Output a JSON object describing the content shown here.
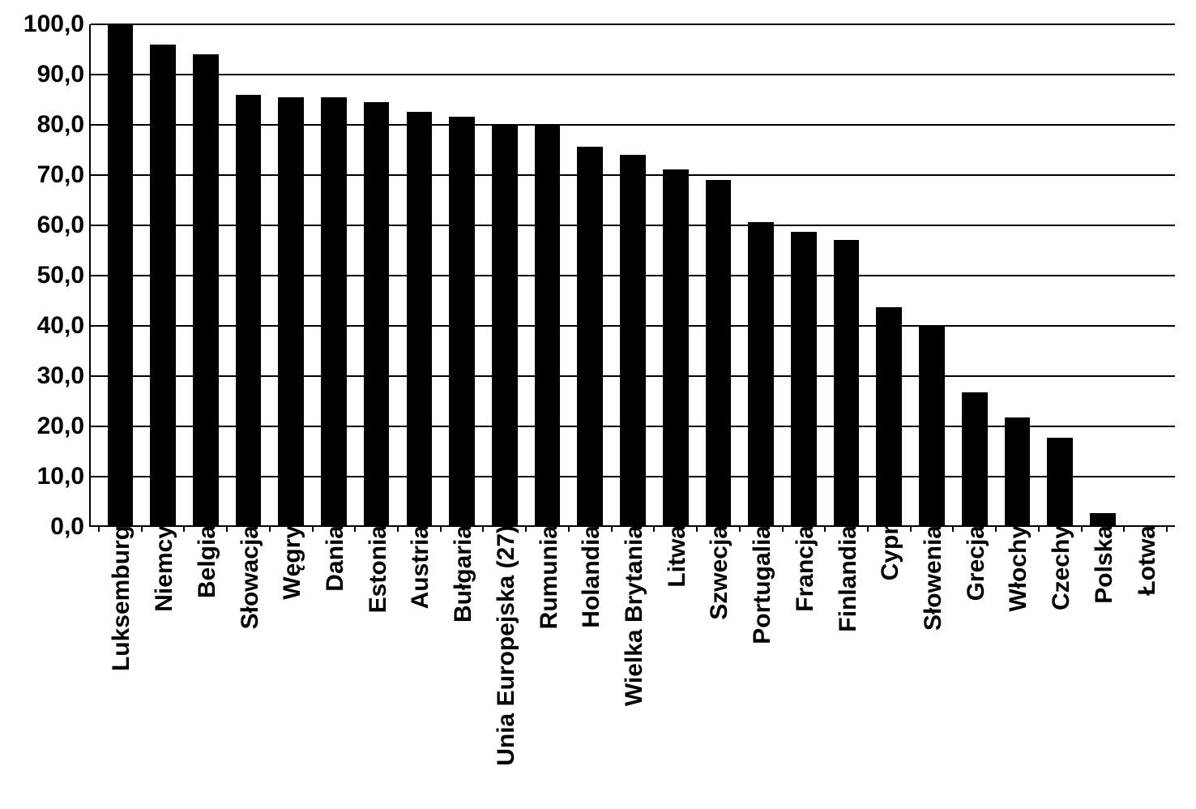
{
  "chart": {
    "type": "bar",
    "categories": [
      "Luksemburg",
      "Niemcy",
      "Belgia",
      "Słowacja",
      "Węgry",
      "Dania",
      "Estonia",
      "Austria",
      "Bułgaria",
      "Unia Europejska (27)",
      "Rumunia",
      "Holandia",
      "Wielka Brytania",
      "Litwa",
      "Szwecja",
      "Portugalia",
      "Francja",
      "Finlandia",
      "Cypr",
      "Słowenia",
      "Grecja",
      "Włochy",
      "Czechy",
      "Polska",
      "Łotwa"
    ],
    "values": [
      100.0,
      96.0,
      94.0,
      86.0,
      85.5,
      85.5,
      84.5,
      82.5,
      81.5,
      80.0,
      80.0,
      75.5,
      74.0,
      71.0,
      69.0,
      60.5,
      58.5,
      57.0,
      43.5,
      40.0,
      26.5,
      21.5,
      17.5,
      2.5,
      0.0
    ],
    "bar_color": "#000000",
    "grid_color": "#000000",
    "background_color": "#ffffff",
    "ylim": [
      0,
      100
    ],
    "ytick_step": 10,
    "ytick_labels": [
      "0,0",
      "10,0",
      "20,0",
      "30,0",
      "40,0",
      "50,0",
      "60,0",
      "70,0",
      "80,0",
      "90,0",
      "100,0"
    ],
    "label_fontsize": 30,
    "bar_width": 0.6,
    "axis_line_width": 2
  }
}
